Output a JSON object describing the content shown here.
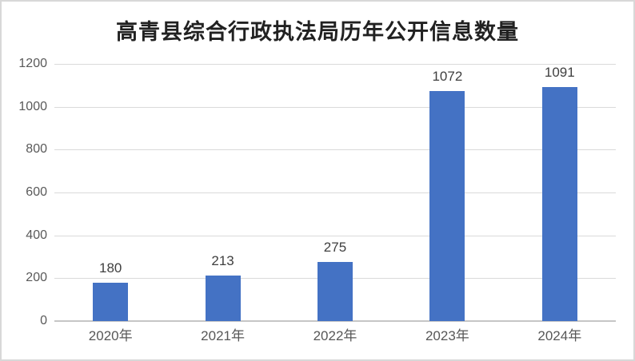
{
  "chart": {
    "title": "高青县综合行政执法局历年公开信息数量",
    "background_color": "#ffffff",
    "border_color": "#d8d8d8",
    "gridline_color": "#dadada",
    "axis_line_color": "#c6c6c6",
    "tick_label_color": "#595959",
    "value_label_color": "#3f3f3f",
    "title_color": "#212121"
  },
  "chart_data": {
    "type": "bar",
    "title": "高青县综合行政执法局历年公开信息数量",
    "categories": [
      "2020年",
      "2021年",
      "2022年",
      "2023年",
      "2024年"
    ],
    "values": [
      180,
      213,
      275,
      1072,
      1091
    ],
    "xlabel": "",
    "ylabel": "",
    "ylim": [
      0,
      1200
    ],
    "yticks": [
      0,
      200,
      400,
      600,
      800,
      1000,
      1200
    ],
    "grid": true,
    "legend": false,
    "bar_color": "#4472c4"
  }
}
